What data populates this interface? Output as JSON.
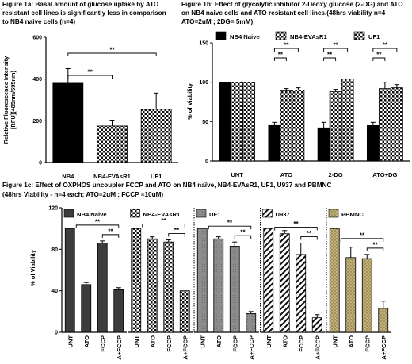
{
  "colors": {
    "black": "#000000",
    "dark": "#3c3c3c",
    "gray": "#8c8c8c",
    "khaki": "#c2b27a"
  },
  "chart_data": [
    {
      "id": "1a",
      "type": "bar",
      "title_lines": [
        "Figure 1a: Basal amount of  glucose uptake by ATO",
        "resistant cell lines is significantly less in comparison",
        "to NB4 naive cells (n=4)"
      ],
      "ylabel_lines": [
        "Relative Fluorescence Intensity",
        "[RFU](485nm/595nm)"
      ],
      "categories": [
        "NB4",
        "NB4-EVAsR1",
        "UF1"
      ],
      "values": [
        380,
        175,
        255
      ],
      "errors": [
        70,
        28,
        78
      ],
      "patterns": [
        "solid-black",
        "check",
        "check"
      ],
      "ylim": [
        0,
        600
      ],
      "yticks": [
        0,
        200,
        400,
        600
      ],
      "yticklabels": [
        "0",
        "200",
        "400",
        "600"
      ],
      "significance": [
        {
          "from": 0,
          "to": 1,
          "label": "**"
        },
        {
          "from": 0,
          "to": 2,
          "label": "**"
        }
      ]
    },
    {
      "id": "1b",
      "type": "bar",
      "title_lines": [
        "Figure 1b: Effect of glycolytic inhibitor 2-Deoxy glucose (2-DG) and ATO",
        "on NB4 naive cells and ATO resistant cell lines.(48hrs viability n=4",
        "ATO=2uM ; 2DG= 5mM)"
      ],
      "ylabel": "% of Viability",
      "categories": [
        "UNT",
        "ATO",
        "2-DG",
        "ATO+DG"
      ],
      "series": [
        {
          "name": "NB4 Naive",
          "pattern": "solid-black",
          "values": [
            100,
            46,
            42,
            45
          ],
          "errors": [
            0,
            3,
            7,
            4
          ]
        },
        {
          "name": "NB4-EVAsR1",
          "pattern": "check",
          "values": [
            100,
            89,
            88,
            92
          ],
          "errors": [
            0,
            3,
            3,
            8
          ]
        },
        {
          "name": "UF1",
          "pattern": "check",
          "values": [
            100,
            90,
            104,
            93
          ],
          "errors": [
            0,
            3,
            0,
            4
          ]
        }
      ],
      "ylim": [
        0,
        150
      ],
      "yticks": [
        0,
        50,
        100,
        150
      ],
      "yticklabels": [
        "0",
        "50",
        "100",
        "150"
      ],
      "legend_placement": "top",
      "significance": [
        {
          "cat": 1,
          "from": 0,
          "to": 1,
          "label": "**"
        },
        {
          "cat": 1,
          "from": 0,
          "to": 2,
          "label": "**"
        },
        {
          "cat": 2,
          "from": 0,
          "to": 1,
          "label": "**"
        },
        {
          "cat": 2,
          "from": 0,
          "to": 2,
          "label": "**"
        },
        {
          "cat": 3,
          "from": 0,
          "to": 1,
          "label": "**"
        },
        {
          "cat": 3,
          "from": 0,
          "to": 2,
          "label": "**"
        }
      ]
    },
    {
      "id": "1c",
      "type": "bar",
      "title_lines": [
        "Figure 1c: Effect of  OXPHOS uncoupler FCCP and ATO on NB4 naïve, NB4-EVAsR1, UF1, U937 and PBMNC",
        "(48hrs Viability - n=4 each; ATO=2uM ; FCCP =10uM)"
      ],
      "ylabel": "% of Viability",
      "ylim": [
        0,
        120
      ],
      "yticks": [
        0,
        40,
        80,
        120
      ],
      "yticklabels": [
        "0",
        "40",
        "80",
        "120"
      ],
      "categories": [
        "UNT",
        "ATO",
        "FCCP",
        "A+FCCP"
      ],
      "panels": [
        {
          "name": "NB4 Naive",
          "pattern": "dark",
          "values": [
            100,
            46,
            86,
            41
          ],
          "errors": [
            0,
            2,
            2,
            2
          ]
        },
        {
          "name": "NB4-EVAsR1",
          "pattern": "check",
          "values": [
            100,
            90,
            87,
            40
          ],
          "errors": [
            0,
            2,
            2,
            0
          ]
        },
        {
          "name": "UF1",
          "pattern": "gray",
          "values": [
            100,
            90,
            83,
            18
          ],
          "errors": [
            0,
            2,
            4,
            2
          ]
        },
        {
          "name": "U937",
          "pattern": "hatch",
          "values": [
            100,
            95,
            75,
            14
          ],
          "errors": [
            0,
            3,
            11,
            3
          ]
        },
        {
          "name": "PBMNC",
          "pattern": "khaki-dot",
          "values": [
            100,
            72,
            71,
            23
          ],
          "errors": [
            0,
            10,
            4,
            7
          ]
        }
      ],
      "significance": [
        {
          "from": 2,
          "to": 3,
          "label": "**"
        },
        {
          "from": 0,
          "to": 3,
          "label": "**"
        }
      ]
    }
  ]
}
